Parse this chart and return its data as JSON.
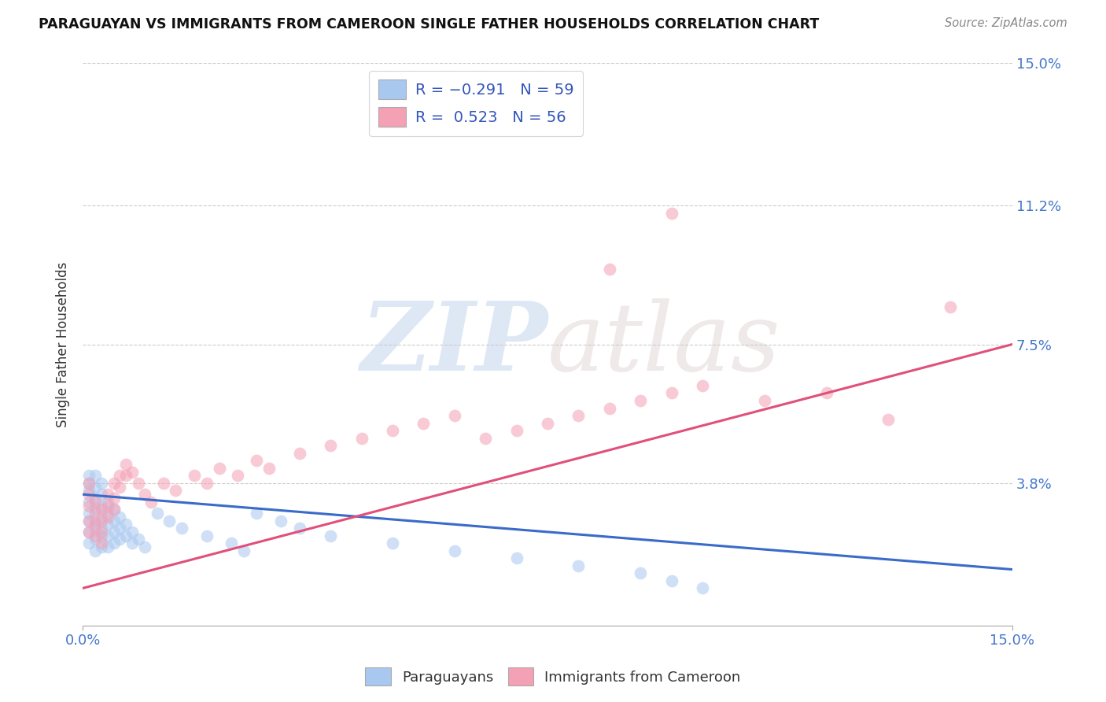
{
  "title": "PARAGUAYAN VS IMMIGRANTS FROM CAMEROON SINGLE FATHER HOUSEHOLDS CORRELATION CHART",
  "source": "Source: ZipAtlas.com",
  "ylabel": "Single Father Households",
  "xlim": [
    0.0,
    0.15
  ],
  "ylim": [
    0.0,
    0.15
  ],
  "ytick_positions": [
    0.0,
    0.038,
    0.075,
    0.112,
    0.15
  ],
  "right_ytick_labels": [
    "",
    "3.8%",
    "7.5%",
    "11.2%",
    "15.0%"
  ],
  "blue_color": "#A8C8F0",
  "pink_color": "#F4A0B5",
  "blue_line_color": "#3A6BC8",
  "pink_line_color": "#E0507A",
  "watermark_zip": "ZIP",
  "watermark_atlas": "atlas",
  "blue_line_x": [
    0.0,
    0.15
  ],
  "blue_line_y": [
    0.035,
    0.015
  ],
  "pink_line_x": [
    0.0,
    0.15
  ],
  "pink_line_y": [
    0.01,
    0.075
  ],
  "blue_scatter_x": [
    0.001,
    0.001,
    0.001,
    0.001,
    0.001,
    0.001,
    0.001,
    0.001,
    0.002,
    0.002,
    0.002,
    0.002,
    0.002,
    0.002,
    0.002,
    0.002,
    0.003,
    0.003,
    0.003,
    0.003,
    0.003,
    0.003,
    0.003,
    0.004,
    0.004,
    0.004,
    0.004,
    0.004,
    0.005,
    0.005,
    0.005,
    0.005,
    0.006,
    0.006,
    0.006,
    0.007,
    0.007,
    0.008,
    0.008,
    0.009,
    0.01,
    0.012,
    0.014,
    0.016,
    0.02,
    0.024,
    0.026,
    0.028,
    0.032,
    0.035,
    0.04,
    0.05,
    0.06,
    0.07,
    0.08,
    0.09,
    0.095,
    0.1
  ],
  "blue_scatter_y": [
    0.03,
    0.033,
    0.036,
    0.038,
    0.04,
    0.028,
    0.025,
    0.022,
    0.028,
    0.031,
    0.034,
    0.037,
    0.04,
    0.026,
    0.023,
    0.02,
    0.026,
    0.029,
    0.032,
    0.035,
    0.038,
    0.024,
    0.021,
    0.03,
    0.033,
    0.027,
    0.024,
    0.021,
    0.028,
    0.031,
    0.025,
    0.022,
    0.026,
    0.029,
    0.023,
    0.027,
    0.024,
    0.025,
    0.022,
    0.023,
    0.021,
    0.03,
    0.028,
    0.026,
    0.024,
    0.022,
    0.02,
    0.03,
    0.028,
    0.026,
    0.024,
    0.022,
    0.02,
    0.018,
    0.016,
    0.014,
    0.012,
    0.01
  ],
  "pink_scatter_x": [
    0.001,
    0.001,
    0.001,
    0.001,
    0.001,
    0.002,
    0.002,
    0.002,
    0.002,
    0.003,
    0.003,
    0.003,
    0.003,
    0.004,
    0.004,
    0.004,
    0.005,
    0.005,
    0.005,
    0.006,
    0.006,
    0.007,
    0.007,
    0.008,
    0.009,
    0.01,
    0.011,
    0.013,
    0.015,
    0.018,
    0.02,
    0.022,
    0.025,
    0.028,
    0.03,
    0.035,
    0.04,
    0.045,
    0.05,
    0.055,
    0.06,
    0.065,
    0.07,
    0.075,
    0.08,
    0.085,
    0.09,
    0.095,
    0.1,
    0.11,
    0.12,
    0.13,
    0.14,
    0.095,
    0.085
  ],
  "pink_scatter_y": [
    0.032,
    0.035,
    0.038,
    0.028,
    0.025,
    0.03,
    0.033,
    0.027,
    0.024,
    0.028,
    0.031,
    0.025,
    0.022,
    0.035,
    0.032,
    0.029,
    0.038,
    0.034,
    0.031,
    0.04,
    0.037,
    0.043,
    0.04,
    0.041,
    0.038,
    0.035,
    0.033,
    0.038,
    0.036,
    0.04,
    0.038,
    0.042,
    0.04,
    0.044,
    0.042,
    0.046,
    0.048,
    0.05,
    0.052,
    0.054,
    0.056,
    0.05,
    0.052,
    0.054,
    0.056,
    0.058,
    0.06,
    0.062,
    0.064,
    0.06,
    0.062,
    0.055,
    0.085,
    0.11,
    0.095
  ]
}
